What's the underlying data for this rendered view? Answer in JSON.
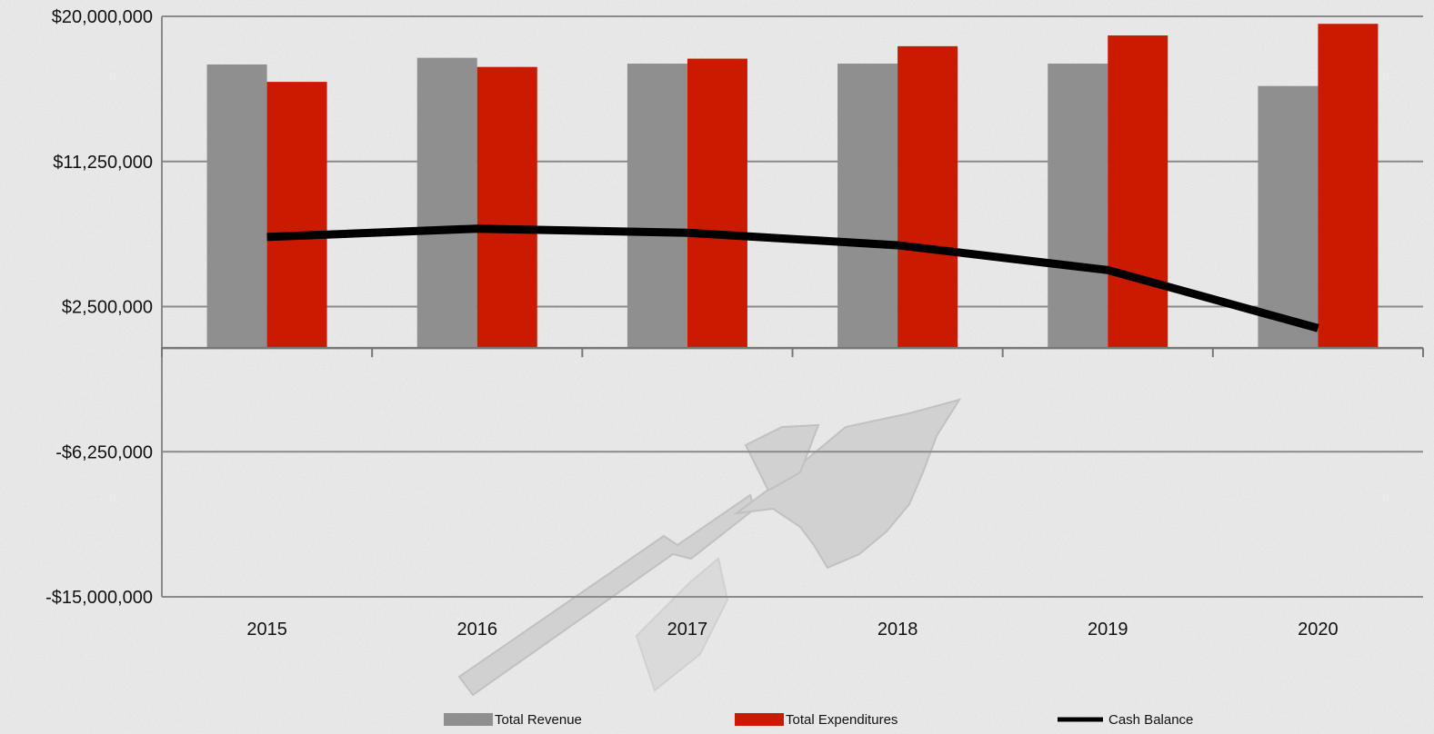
{
  "chart_data": {
    "type": "bar",
    "title": "",
    "xlabel": "",
    "ylabel": "",
    "categories": [
      "2015",
      "2016",
      "2017",
      "2018",
      "2019",
      "2020"
    ],
    "ylim": [
      -15000000,
      20000000
    ],
    "y_ticks": [
      20000000,
      11250000,
      2500000,
      -6250000,
      -15000000
    ],
    "y_tick_labels": [
      "$20,000,000",
      "$11,250,000",
      "$2,500,000",
      "-$6,250,000",
      "-$15,000,000"
    ],
    "grid": true,
    "legend_position": "bottom",
    "series": [
      {
        "name": "Total Revenue",
        "type": "bar",
        "color": "#8f8f8f",
        "values": [
          17100000,
          17500000,
          17150000,
          17150000,
          17150000,
          15800000
        ]
      },
      {
        "name": "Total Expenditures",
        "type": "bar",
        "color": "#cc1a00",
        "values": [
          16050000,
          16950000,
          17450000,
          18200000,
          18850000,
          19550000
        ]
      },
      {
        "name": "Cash Balance",
        "type": "line",
        "color": "#000000",
        "values": [
          6700000,
          7200000,
          6950000,
          6200000,
          4700000,
          1200000
        ]
      }
    ]
  }
}
